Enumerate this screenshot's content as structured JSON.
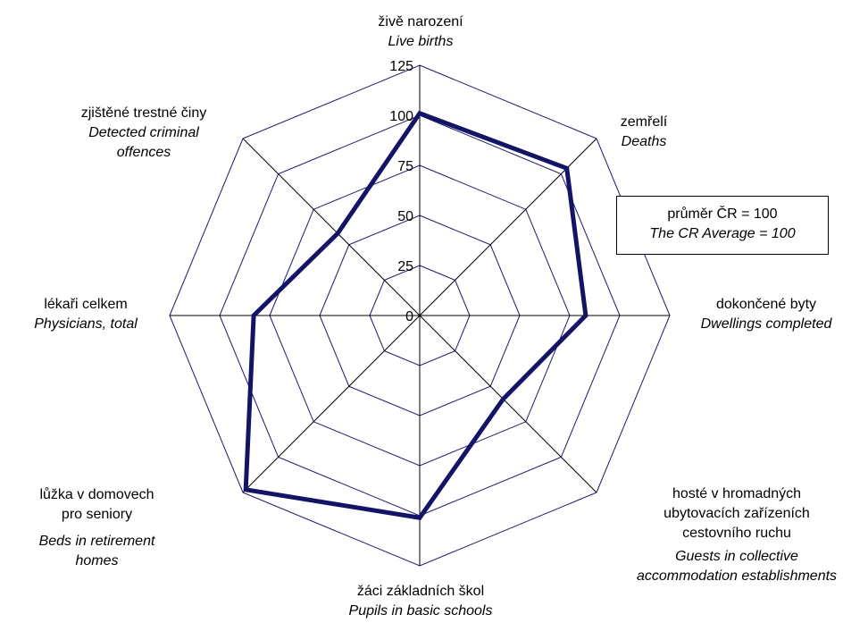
{
  "chart_data": {
    "type": "radar",
    "max": 125,
    "ticks": [
      0,
      25,
      50,
      75,
      100,
      125
    ],
    "tick_labels": [
      "0",
      "25",
      "50",
      "75",
      "100",
      "125"
    ],
    "grid": true,
    "axes": [
      {
        "cz": "živě narození",
        "en": "Live births"
      },
      {
        "cz": "zemřelí",
        "en": "Deaths"
      },
      {
        "cz": "dokončené byty",
        "en": "Dwellings completed"
      },
      {
        "cz": "hosté v hromadných ubytovacích zařízeních cestovního ruchu",
        "en": "Guests in collective accommodation establishments"
      },
      {
        "cz": "žáci základních škol",
        "en": "Pupils in basic schools"
      },
      {
        "cz": "lůžka v domovech pro seniory",
        "en": "Beds in retirement homes"
      },
      {
        "cz": "lékaři celkem",
        "en": "Physicians, total"
      },
      {
        "cz": "zjištěné trestné činy",
        "en": "Detected criminal offences"
      }
    ],
    "series": [
      {
        "values": [
          101,
          104,
          83,
          59,
          101,
          123,
          83,
          58
        ],
        "color": "#141466"
      }
    ],
    "legend": {
      "cz": "průměr  ČR = 100",
      "en": "The CR Average = 100"
    }
  }
}
